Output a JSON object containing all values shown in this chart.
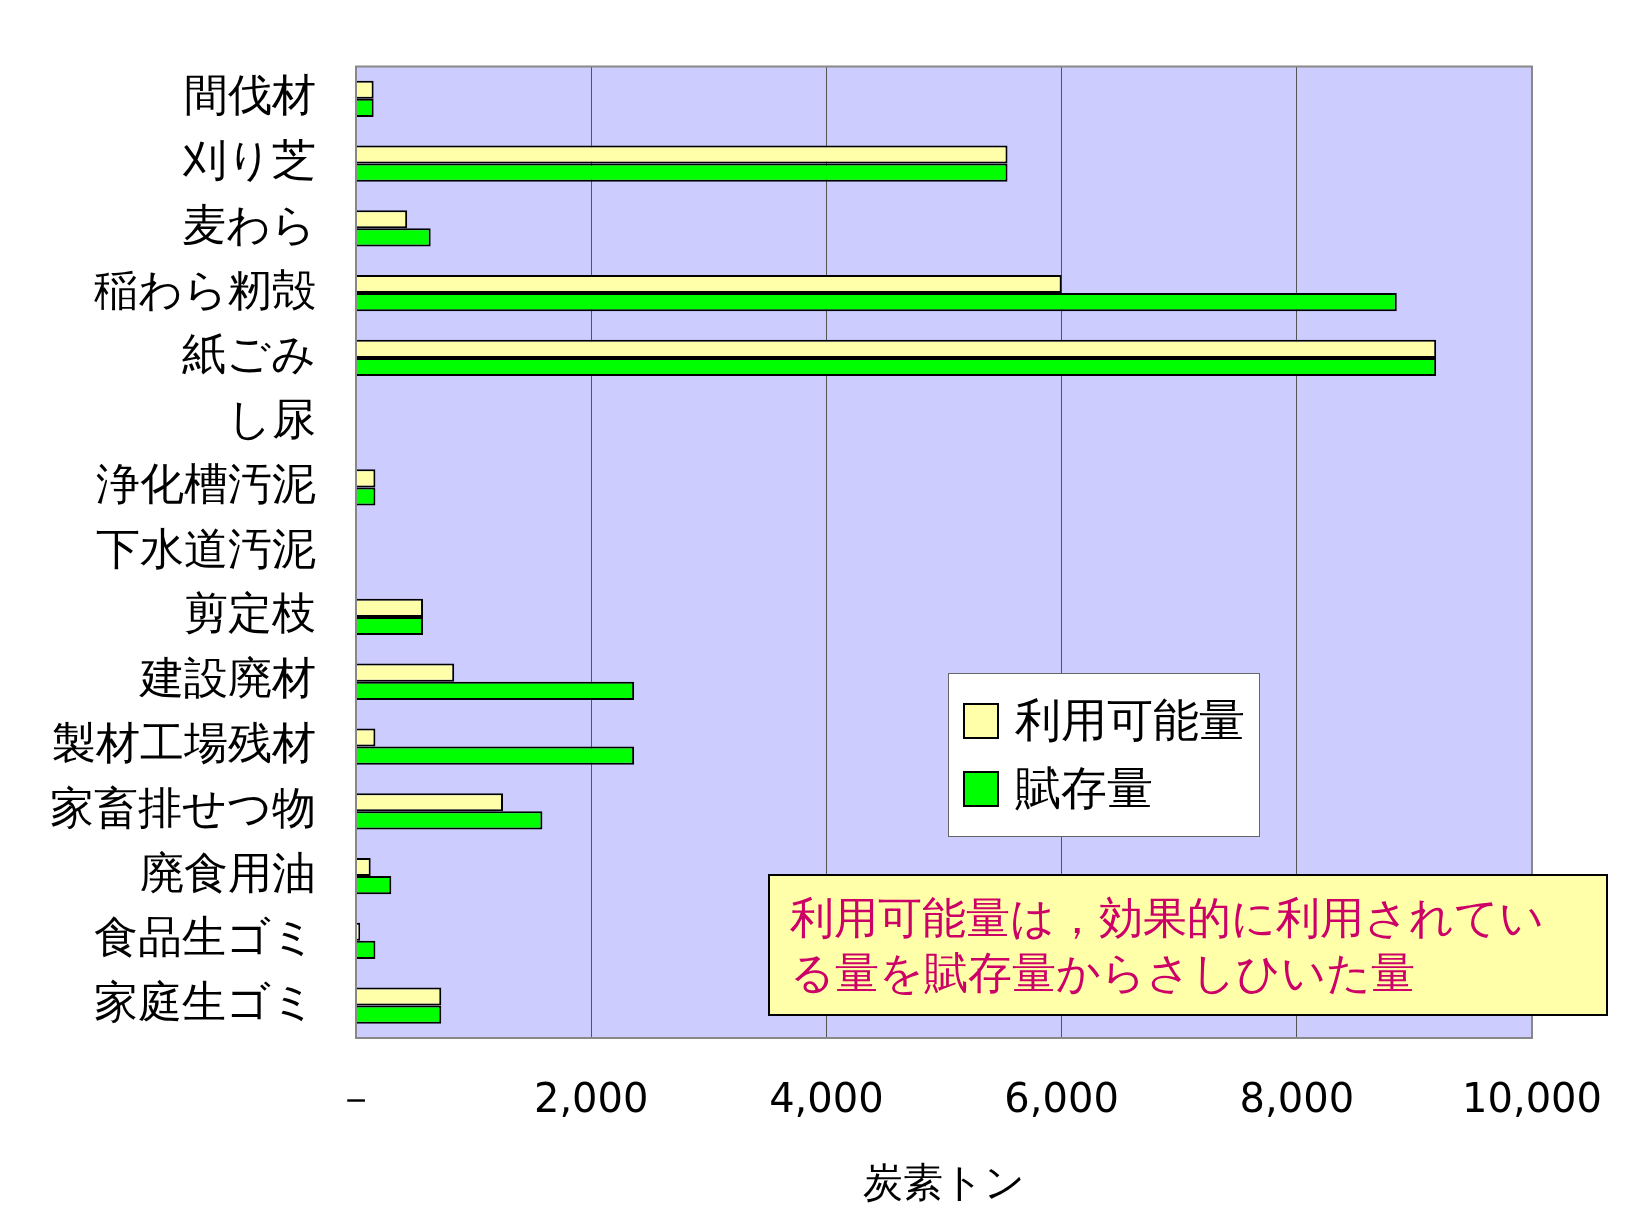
{
  "chart_data": {
    "type": "bar",
    "orientation": "horizontal",
    "xlabel": "炭素トン",
    "categories": [
      "間伐材",
      "刈り芝",
      "麦わら",
      "稲わら籾殻",
      "紙ごみ",
      "し尿",
      "浄化槽汚泥",
      "下水道汚泥",
      "剪定枝",
      "建設廃材",
      "製材工場残材",
      "家畜排せつ物",
      "廃食用油",
      "食品生ゴミ",
      "家庭生ゴミ"
    ],
    "series": [
      {
        "name": "利用可能量",
        "color": "#ffffaa",
        "values": [
          150,
          5540,
          435,
          6000,
          9185,
          0,
          165,
          0,
          570,
          835,
          165,
          1250,
          125,
          35,
          725
        ]
      },
      {
        "name": "賦存量",
        "color": "#00ff00",
        "values": [
          150,
          5540,
          635,
          8850,
          9185,
          0,
          165,
          0,
          570,
          2365,
          2365,
          1585,
          300,
          165,
          725
        ]
      }
    ],
    "xlim": [
      0,
      10000
    ],
    "xticks": [
      {
        "value": 0,
        "label": "－"
      },
      {
        "value": 2000,
        "label": "2,000"
      },
      {
        "value": 4000,
        "label": "4,000"
      },
      {
        "value": 6000,
        "label": "6,000"
      },
      {
        "value": 8000,
        "label": "8,000"
      },
      {
        "value": 10000,
        "label": "10,000"
      }
    ],
    "grid": "x",
    "legend": "right",
    "annotations": [
      "利用可能量は，効果的に利用されている量を賦存量からさしひいた量"
    ]
  }
}
